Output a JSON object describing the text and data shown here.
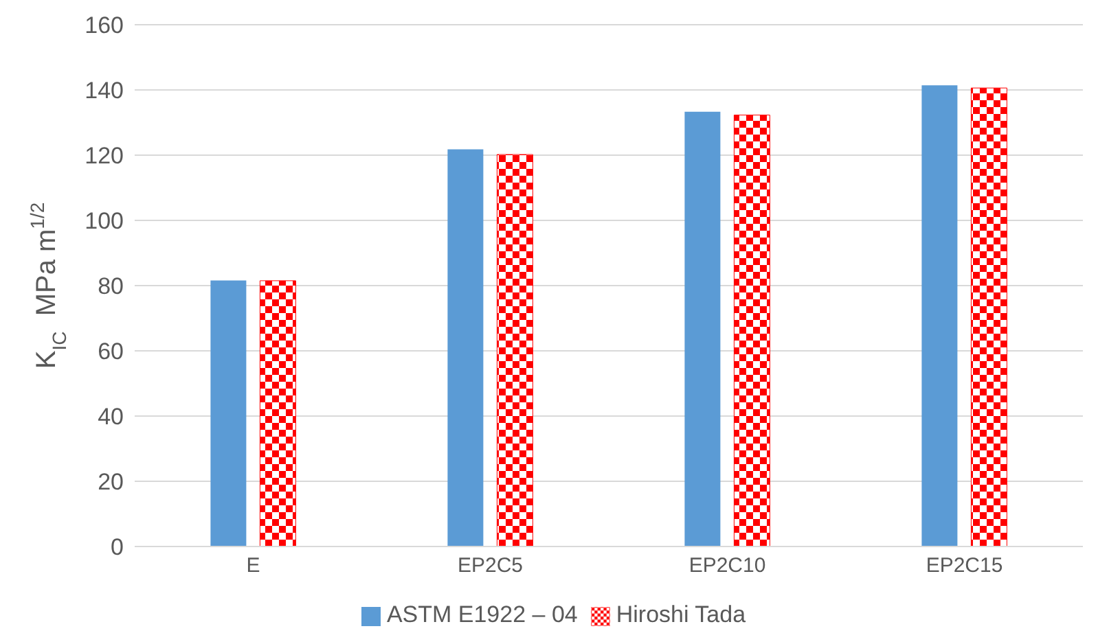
{
  "chart_data": {
    "type": "bar",
    "ylabel": "K$_{IC}$  MPa m$^{1/2}$",
    "categories": [
      "E",
      "EP2C5",
      "EP2C10",
      "EP2C15"
    ],
    "series": [
      {
        "name": "ASTM E1922 – 04",
        "color": "#5b9bd5",
        "values": [
          81.6,
          121.8,
          133.3,
          141.4
        ]
      },
      {
        "name": "Hiroshi Tada",
        "color": "#ff0000",
        "values": [
          81.5,
          120.2,
          132.3,
          140.6
        ]
      }
    ],
    "ylim": [
      0,
      160
    ],
    "yticks": [
      0,
      20,
      40,
      60,
      80,
      100,
      120,
      140,
      160
    ],
    "grid": "y",
    "legend": "bottom"
  }
}
